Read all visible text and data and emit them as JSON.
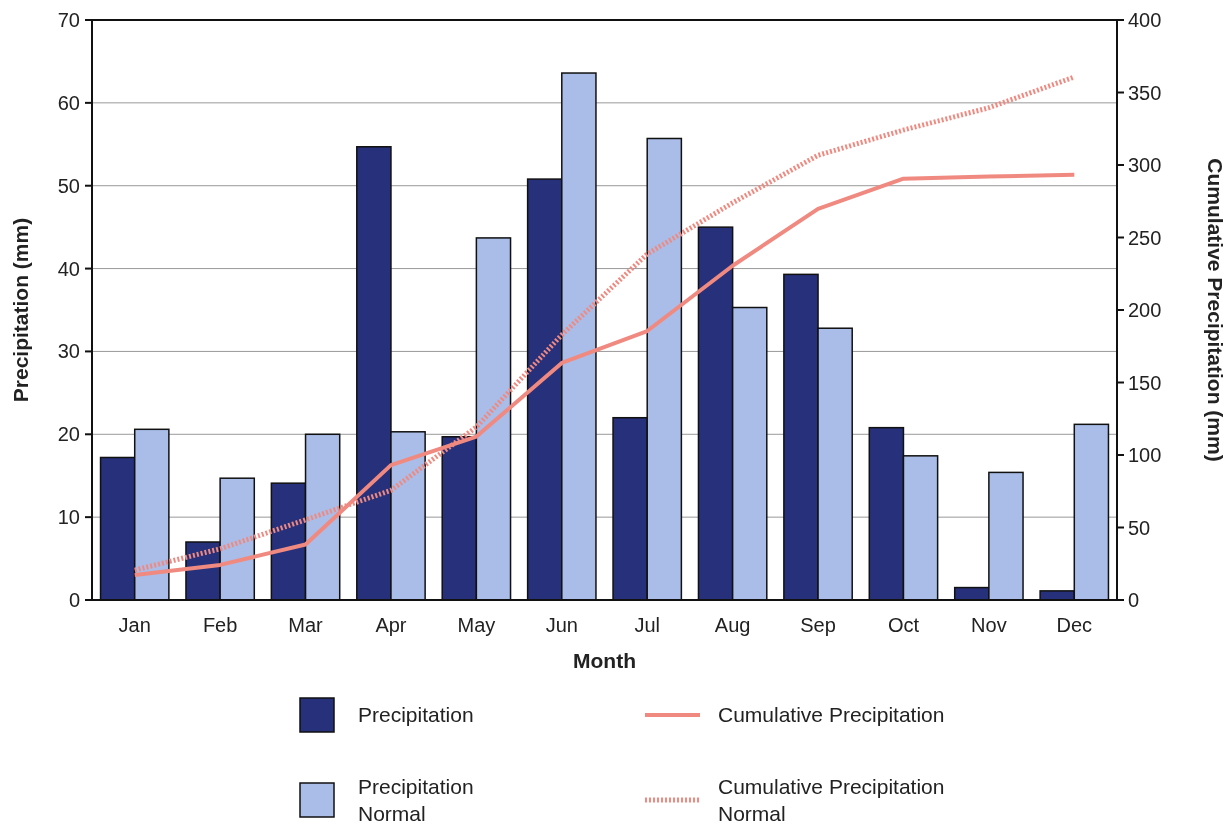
{
  "chart_data": {
    "type": "bar",
    "xlabel": "Month",
    "ylabel": "Precipitation (mm)",
    "y2label": "Cumulative Precipitation (mm)",
    "categories": [
      "Jan",
      "Feb",
      "Mar",
      "Apr",
      "May",
      "Jun",
      "Jul",
      "Aug",
      "Sep",
      "Oct",
      "Nov",
      "Dec"
    ],
    "series": [
      {
        "name": "Precipitation",
        "color": "#27307a",
        "values": [
          17.2,
          7,
          14.1,
          54.7,
          19.7,
          50.8,
          22,
          45,
          39.3,
          20.8,
          1.5,
          1.1
        ]
      },
      {
        "name": "Precipitation Normal",
        "color": "#a9bde8",
        "values": [
          20.6,
          14.7,
          20,
          20.3,
          43.7,
          63.6,
          55.7,
          35.3,
          32.8,
          17.4,
          15.4,
          21.2
        ]
      },
      {
        "name": "Cumulative Precipitation",
        "type": "line",
        "axis": "y2",
        "line_style": "solid",
        "color": "#f08a80",
        "values": [
          17.2,
          24.2,
          38.3,
          93,
          112.7,
          163.5,
          185.5,
          230.5,
          269.8,
          290.6,
          292.1,
          293.2
        ]
      },
      {
        "name": "Cumulative Precipitation Normal",
        "type": "line",
        "axis": "y2",
        "line_style": "dotted",
        "color": "#f08a80",
        "values": [
          20.6,
          35.3,
          55.3,
          75.6,
          119.3,
          182.9,
          238.6,
          273.9,
          306.7,
          324.1,
          339.5,
          360.7
        ]
      }
    ],
    "ylim": [
      0,
      70
    ],
    "yticks": [
      0,
      10,
      20,
      30,
      40,
      50,
      60,
      70
    ],
    "y2lim": [
      0,
      400
    ],
    "y2ticks": [
      0,
      50,
      100,
      150,
      200,
      250,
      300,
      350,
      400
    ],
    "grid": "y",
    "legend": "bottom"
  }
}
